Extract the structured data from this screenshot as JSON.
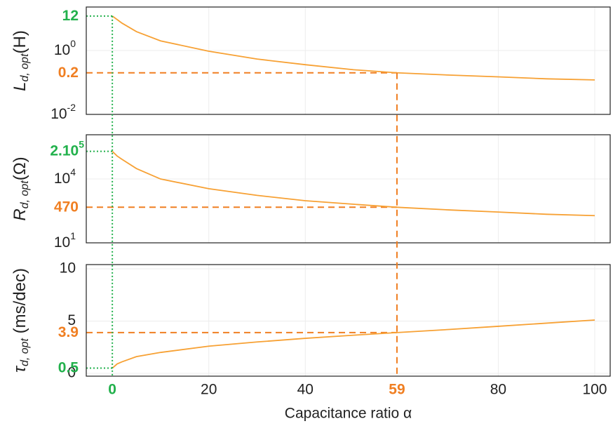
{
  "chart_data": [
    {
      "type": "line",
      "ylabel": {
        "main": "L",
        "sub": "d, opt",
        "tail": "(H)"
      },
      "log_y": true,
      "ylim": [
        0.01,
        23
      ],
      "yticks": [
        {
          "value": 1,
          "label": "10",
          "exponent": "0"
        },
        {
          "value": 0.01,
          "label": "10",
          "exponent": "-2"
        }
      ],
      "xlim": [
        -5.4,
        103.2
      ],
      "x": [
        0,
        1,
        2,
        5,
        10,
        20,
        30,
        40,
        50,
        59,
        70,
        80,
        90,
        100
      ],
      "series": [
        {
          "color": "#f7a134",
          "values": [
            12,
            9.3,
            7.2,
            3.9,
            2.0,
            0.95,
            0.54,
            0.36,
            0.25,
            0.2,
            0.17,
            0.15,
            0.13,
            0.12
          ]
        }
      ],
      "y_markers": [
        {
          "value": 12,
          "label": "12",
          "x": 0,
          "color": "#22b14c",
          "style": "dotted"
        },
        {
          "value": 0.2,
          "label": "0.2",
          "x": 59,
          "color": "#f07f22",
          "style": "dashed"
        }
      ]
    },
    {
      "type": "line",
      "ylabel": {
        "main": "R",
        "sub": "d, opt",
        "tail": "(Ω)"
      },
      "log_y": true,
      "ylim": [
        10,
        1200000
      ],
      "yticks": [
        {
          "value": 10000,
          "label": "10",
          "exponent": "4"
        },
        {
          "value": 10,
          "label": "10",
          "exponent": "1"
        }
      ],
      "xlim": [
        -5.4,
        103.2
      ],
      "x": [
        0,
        1,
        2,
        5,
        10,
        20,
        30,
        40,
        50,
        59,
        70,
        80,
        90,
        100
      ],
      "series": [
        {
          "color": "#f7a134",
          "values": [
            200000,
            120000,
            84000,
            31000,
            10000,
            3500,
            1700,
            950,
            650,
            470,
            350,
            280,
            220,
            190
          ]
        }
      ],
      "y_markers": [
        {
          "value": 200000,
          "label": "2.10",
          "exponent": "5",
          "x": 0,
          "color": "#22b14c",
          "style": "dotted"
        },
        {
          "value": 470,
          "label": "470",
          "x": 59,
          "color": "#f07f22",
          "style": "dashed"
        }
      ]
    },
    {
      "type": "line",
      "ylabel": {
        "main": "τ",
        "sub": "d, opt",
        "tail": " (ms/dec)"
      },
      "log_y": false,
      "ylim": [
        -0.27,
        10.4
      ],
      "yticks": [
        0,
        5,
        10
      ],
      "xlim": [
        -5.4,
        103.2
      ],
      "xticks": [
        20,
        40,
        80,
        100
      ],
      "xlabel": "Capacitance ratio α",
      "x": [
        0,
        1,
        2,
        5,
        10,
        20,
        30,
        40,
        50,
        59,
        70,
        80,
        90,
        100
      ],
      "series": [
        {
          "color": "#f7a134",
          "values": [
            0.5,
            0.9,
            1.1,
            1.6,
            2.0,
            2.6,
            3.0,
            3.35,
            3.65,
            3.9,
            4.2,
            4.5,
            4.8,
            5.1
          ]
        }
      ],
      "y_markers": [
        {
          "value": 3.9,
          "label": "3.9",
          "x": 59,
          "color": "#f07f22",
          "style": "dashed"
        },
        {
          "value": 0.5,
          "label": "0.5",
          "x": 0,
          "color": "#22b14c",
          "style": "dotted"
        }
      ],
      "x_markers": [
        {
          "value": 0,
          "label": "0",
          "color": "#22b14c",
          "style": "dotted"
        },
        {
          "value": 59,
          "label": "59",
          "color": "#f07f22",
          "style": "dashed"
        }
      ]
    }
  ]
}
